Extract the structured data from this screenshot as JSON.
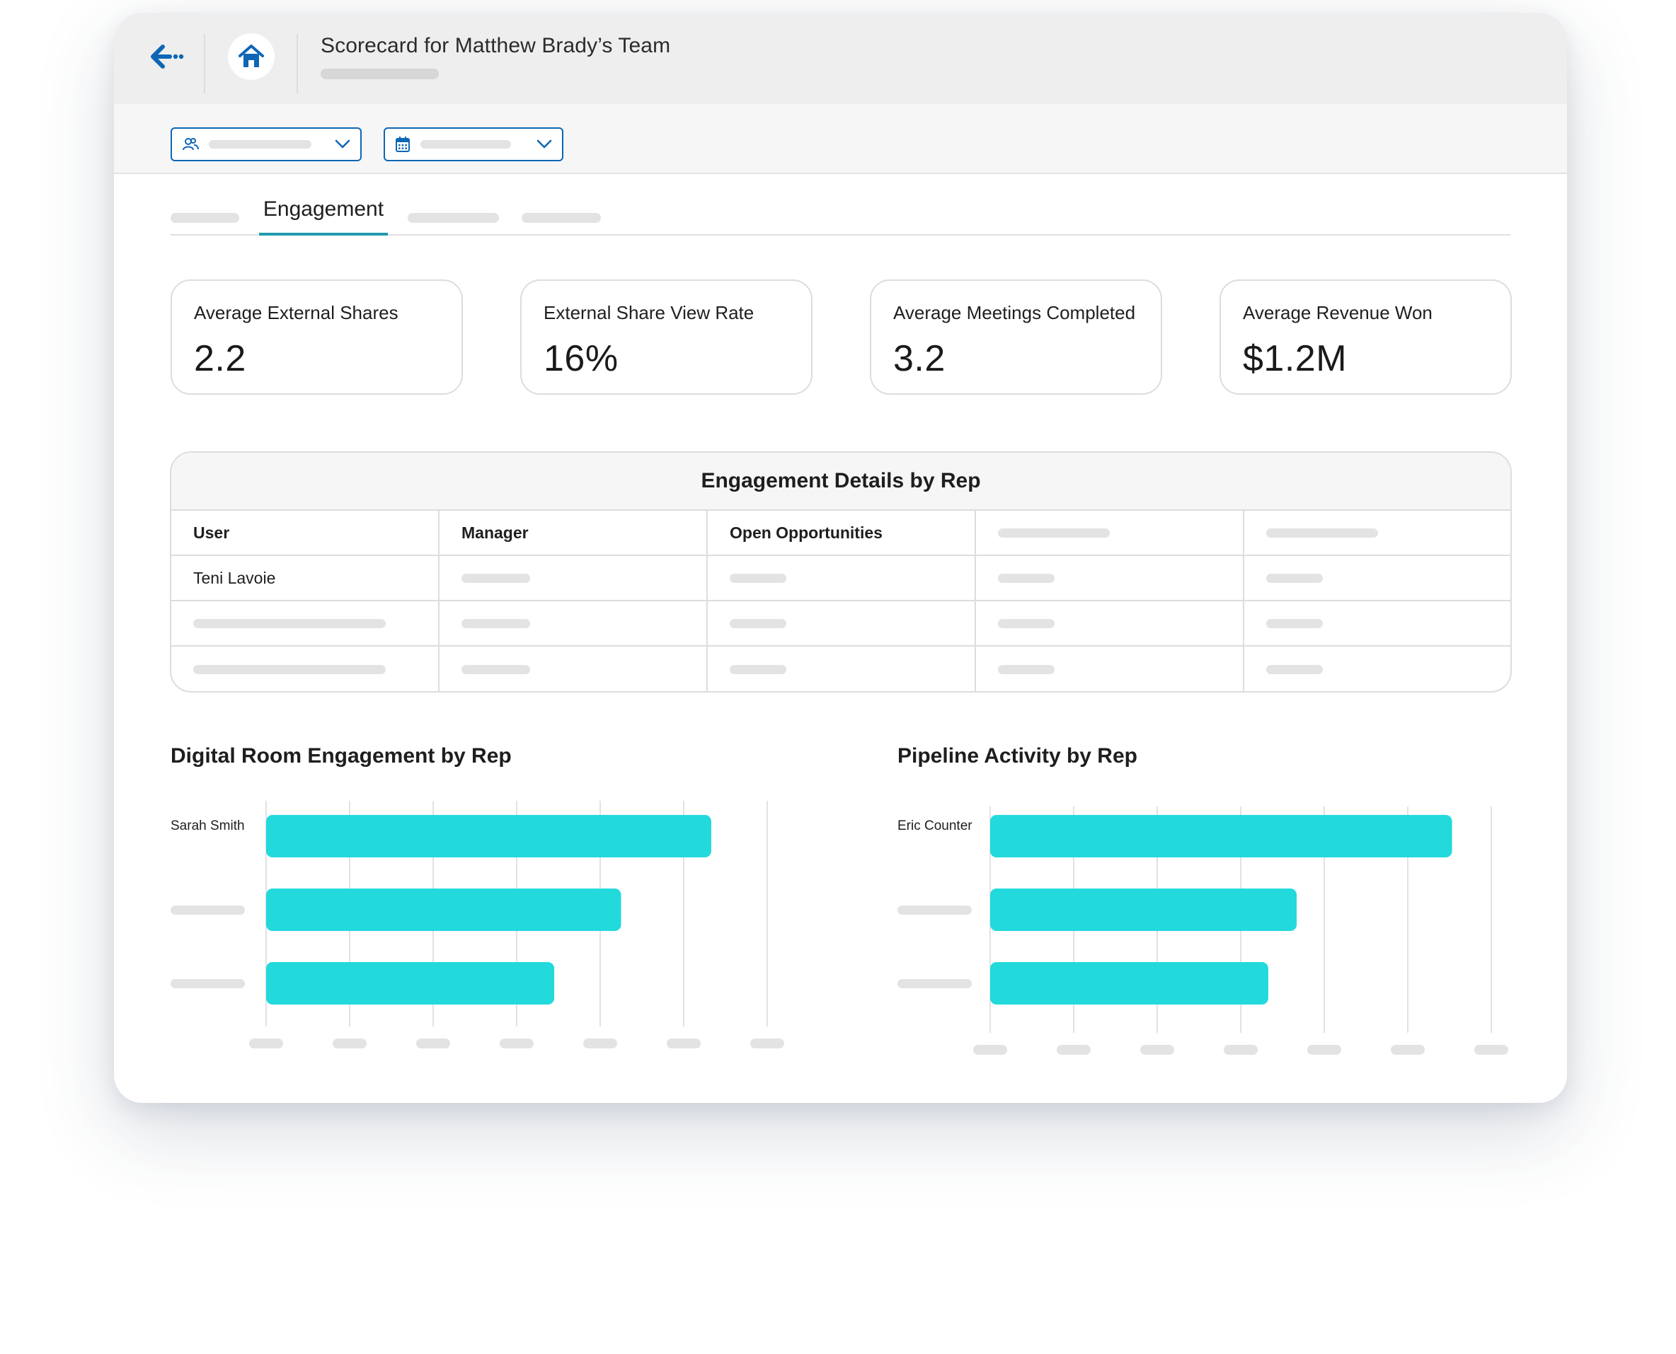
{
  "header": {
    "title": "Scorecard for Matthew Brady’s Team"
  },
  "icons": {
    "back": "arrow-left-icon",
    "home": "home-icon",
    "team_filter": "users-icon",
    "date_filter": "calendar-icon",
    "dropdown": "chevron-down-icon"
  },
  "colors": {
    "accent_blue": "#0e66b5",
    "tab_underline": "#1f9bac",
    "bar": "#22d9dc"
  },
  "tabs": {
    "active_label": "Engagement"
  },
  "kpis": [
    {
      "label": "Average External Shares",
      "value": "2.2"
    },
    {
      "label": "External Share View Rate",
      "value": "16%"
    },
    {
      "label": "Average Meetings Completed",
      "value": "3.2"
    },
    {
      "label": "Average Revenue Won",
      "value": "$1.2M"
    }
  ],
  "table": {
    "title": "Engagement Details by Rep",
    "columns": [
      "User",
      "Manager",
      "Open Opportunities",
      "",
      ""
    ],
    "rows": [
      [
        "Teni Lavoie",
        "",
        "",
        "",
        ""
      ],
      [
        "",
        "",
        "",
        "",
        ""
      ],
      [
        "",
        "",
        "",
        "",
        ""
      ]
    ]
  },
  "chart_data": [
    {
      "type": "bar",
      "orientation": "horizontal",
      "title": "Digital Room Engagement by Rep",
      "categories": [
        "Sarah Smith",
        "",
        ""
      ],
      "values": [
        5.33,
        4.25,
        3.45
      ],
      "xlim": [
        0,
        6
      ],
      "grid": true,
      "color": "#22d9dc"
    },
    {
      "type": "bar",
      "orientation": "horizontal",
      "title": "Pipeline Activity by Rep",
      "categories": [
        "Eric Counter",
        "",
        ""
      ],
      "values": [
        5.53,
        3.67,
        3.33
      ],
      "xlim": [
        0,
        6
      ],
      "grid": true,
      "color": "#22d9dc"
    }
  ]
}
